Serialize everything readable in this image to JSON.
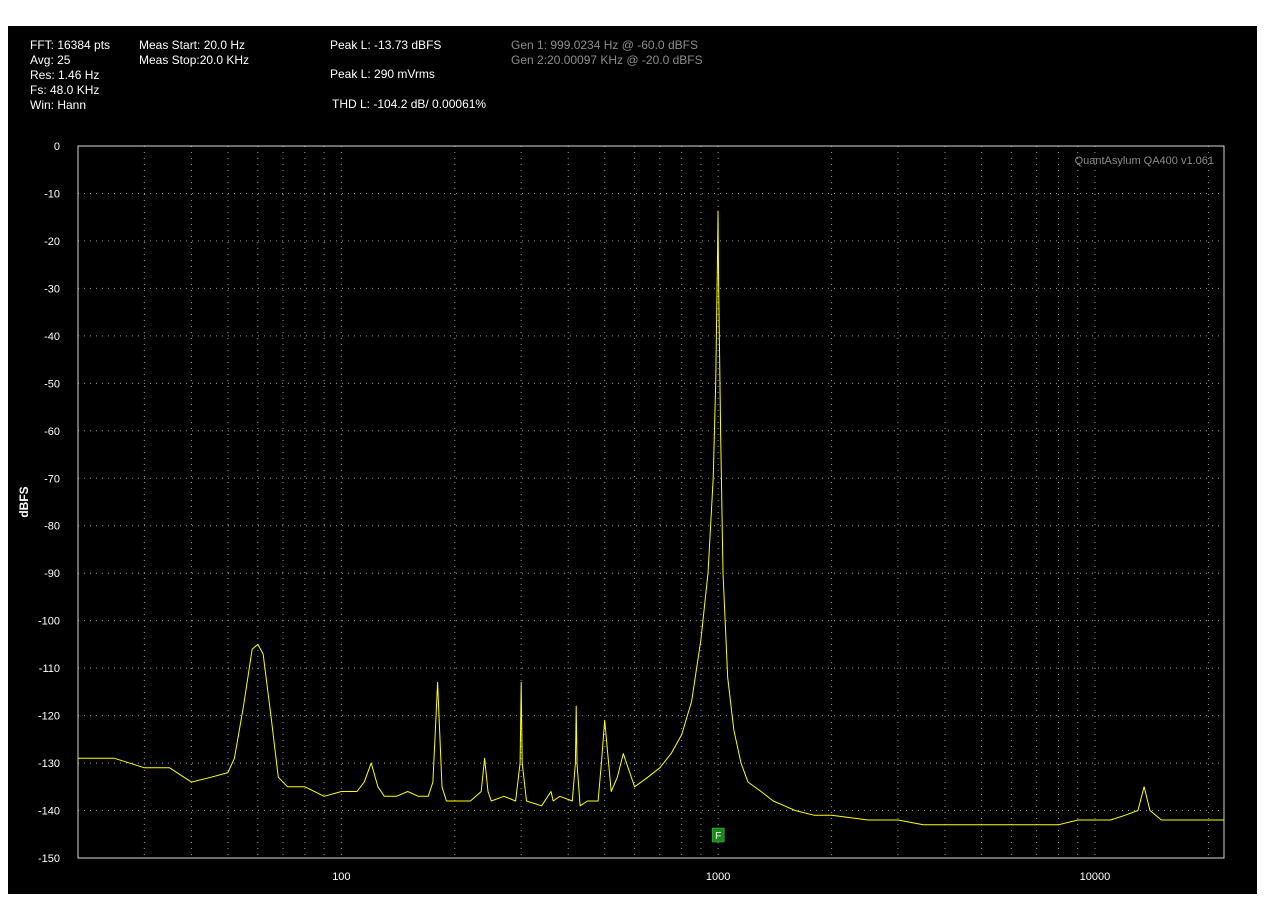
{
  "info": {
    "col1": [
      "FFT: 16384 pts",
      "Avg: 25",
      "Res: 1.46 Hz",
      "Fs: 48.0 KHz",
      "Win: Hann"
    ],
    "col2": [
      "Meas Start: 20.0 Hz",
      "Meas Stop:20.0 KHz"
    ],
    "peak_level": "Peak L: -13.73 dBFS",
    "peak_vrms": "Peak L: 290 mVrms",
    "thd": "THD L: -104.2 dB/ 0.00061%",
    "gen1": "Gen 1: 999.0234 Hz @ -60.0  dBFS",
    "gen2": "Gen 2:20.00097 KHz @ -20.0  dBFS"
  },
  "watermark": "QuantAsylum QA400 v1.061",
  "marker_label": "F",
  "colors": {
    "trace": "#ffff00",
    "grid": "#9a9a9a",
    "background": "#000000",
    "marker": "#1a8a1a"
  },
  "chart_data": {
    "type": "line",
    "title": "",
    "xlabel": "",
    "ylabel": "dBFS",
    "x_scale": "log",
    "xlim": [
      20,
      22000
    ],
    "ylim": [
      -150,
      0
    ],
    "yticks": [
      "0",
      "-10",
      "-20",
      "-30",
      "-40",
      "-50",
      "-60",
      "-70",
      "-80",
      "-90",
      "-100",
      "-110",
      "-120",
      "-130",
      "-140",
      "-150"
    ],
    "ytick_values": [
      0,
      -10,
      -20,
      -30,
      -40,
      -50,
      -60,
      -70,
      -80,
      -90,
      -100,
      -110,
      -120,
      -130,
      -140,
      -150
    ],
    "xticks": [
      "100",
      "1000",
      "10000"
    ],
    "xtick_values": [
      100,
      1000,
      10000
    ],
    "grid": true,
    "series": [
      {
        "x": [
          20,
          25,
          30,
          35,
          40,
          45,
          50,
          52,
          55,
          58,
          60,
          62,
          65,
          68,
          72,
          80,
          90,
          100,
          110,
          115,
          120,
          125,
          130,
          140,
          150,
          160,
          170,
          175,
          180,
          185,
          190,
          200,
          220,
          235,
          240,
          245,
          250,
          270,
          290,
          298,
          300,
          302,
          310,
          340,
          360,
          365,
          380,
          410,
          418,
          420,
          422,
          430,
          450,
          480,
          490,
          500,
          520,
          540,
          560,
          600,
          650,
          700,
          750,
          800,
          850,
          900,
          940,
          970,
          985,
          995,
          999,
          1003,
          1015,
          1030,
          1060,
          1100,
          1150,
          1200,
          1300,
          1400,
          1500,
          1600,
          1800,
          2000,
          2500,
          3000,
          3500,
          4000,
          5000,
          6000,
          7000,
          8000,
          9000,
          10000,
          11000,
          12000,
          13000,
          13500,
          14000,
          15000,
          16000,
          18000,
          20000,
          22000
        ],
        "y": [
          -129,
          -129,
          -131,
          -131,
          -134,
          -133,
          -132,
          -129,
          -118,
          -106,
          -105,
          -107,
          -120,
          -133,
          -135,
          -135,
          -137,
          -136,
          -136,
          -134,
          -130,
          -135,
          -137,
          -137,
          -136,
          -137,
          -137,
          -134,
          -113,
          -135,
          -138,
          -138,
          -138,
          -136,
          -129,
          -136,
          -138,
          -137,
          -138,
          -130,
          -113,
          -130,
          -138,
          -139,
          -136,
          -138,
          -137,
          -138,
          -130,
          -118,
          -130,
          -139,
          -138,
          -138,
          -130,
          -121,
          -136,
          -133,
          -128,
          -135,
          -133,
          -131,
          -128,
          -124,
          -117,
          -104,
          -90,
          -70,
          -50,
          -25,
          -13.7,
          -30,
          -60,
          -90,
          -112,
          -123,
          -130,
          -134,
          -136,
          -138,
          -139,
          -140,
          -141,
          -141,
          -142,
          -142,
          -143,
          -143,
          -143,
          -143,
          -143,
          -143,
          -142,
          -142,
          -142,
          -141,
          -140,
          -135,
          -140,
          -142,
          -142,
          -142,
          -142,
          -142
        ]
      }
    ],
    "marker": {
      "x": 1000
    }
  }
}
